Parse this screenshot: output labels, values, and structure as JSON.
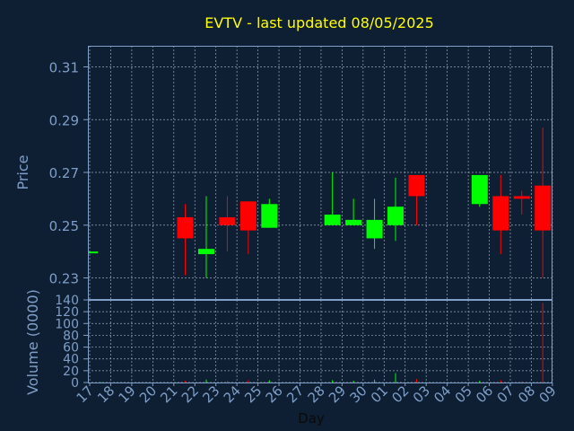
{
  "chart_data": {
    "type": "candlestick",
    "title": "EVTV - last updated 08/05/2025",
    "xlabel": "Day",
    "price_panel": {
      "ylabel": "Price",
      "ylim": [
        0.222,
        0.318
      ],
      "yticks": [
        0.23,
        0.25,
        0.27,
        0.29,
        0.31
      ],
      "ytick_labels": [
        "0.23",
        "0.25",
        "0.27",
        "0.29",
        "0.31"
      ],
      "grid": true
    },
    "volume_panel": {
      "ylabel": "Volume (0000)",
      "ylim": [
        0,
        140
      ],
      "yticks": [
        0,
        20,
        40,
        60,
        80,
        100,
        120,
        140
      ],
      "ytick_labels": [
        "0",
        "20",
        "40",
        "60",
        "80",
        "100",
        "120",
        "140"
      ],
      "grid": true
    },
    "x_tick_labels": [
      "17",
      "18",
      "19",
      "20",
      "21",
      "22",
      "23",
      "24",
      "25",
      "26",
      "27",
      "28",
      "29",
      "30",
      "01",
      "02",
      "03",
      "04",
      "05",
      "06",
      "07",
      "08",
      "09"
    ],
    "colors": {
      "up": "#00ff00",
      "down": "#ff0000",
      "background": "#0e1e33",
      "title": "#ffff00",
      "axis_text": "#7f9fc8"
    },
    "candles": [
      {
        "day": "17",
        "open": 0.24,
        "high": 0.24,
        "low": 0.24,
        "close": 0.24,
        "volume": 0.5
      },
      {
        "day": "21",
        "open": 0.253,
        "high": 0.258,
        "low": 0.231,
        "close": 0.245,
        "volume": 3
      },
      {
        "day": "22",
        "open": 0.239,
        "high": 0.261,
        "low": 0.23,
        "close": 0.241,
        "volume": 5
      },
      {
        "day": "23",
        "open": 0.253,
        "high": 0.261,
        "low": 0.24,
        "close": 0.25,
        "volume": 3
      },
      {
        "day": "24",
        "open": 0.259,
        "high": 0.259,
        "low": 0.239,
        "close": 0.248,
        "volume": 4
      },
      {
        "day": "25",
        "open": 0.249,
        "high": 0.26,
        "low": 0.249,
        "close": 0.258,
        "volume": 4
      },
      {
        "day": "28",
        "open": 0.25,
        "high": 0.27,
        "low": 0.25,
        "close": 0.254,
        "volume": 4
      },
      {
        "day": "29",
        "open": 0.25,
        "high": 0.26,
        "low": 0.25,
        "close": 0.252,
        "volume": 3
      },
      {
        "day": "30",
        "open": 0.245,
        "high": 0.26,
        "low": 0.241,
        "close": 0.252,
        "volume": 5
      },
      {
        "day": "01",
        "open": 0.25,
        "high": 0.268,
        "low": 0.244,
        "close": 0.257,
        "volume": 16
      },
      {
        "day": "02",
        "open": 0.269,
        "high": 0.269,
        "low": 0.25,
        "close": 0.261,
        "volume": 6
      },
      {
        "day": "05",
        "open": 0.258,
        "high": 0.269,
        "low": 0.257,
        "close": 0.269,
        "volume": 3
      },
      {
        "day": "06",
        "open": 0.261,
        "high": 0.269,
        "low": 0.239,
        "close": 0.248,
        "volume": 4
      },
      {
        "day": "07",
        "open": 0.261,
        "high": 0.263,
        "low": 0.254,
        "close": 0.26,
        "volume": 2
      },
      {
        "day": "08",
        "open": 0.265,
        "high": 0.287,
        "low": 0.23,
        "close": 0.248,
        "volume": 135
      }
    ]
  }
}
